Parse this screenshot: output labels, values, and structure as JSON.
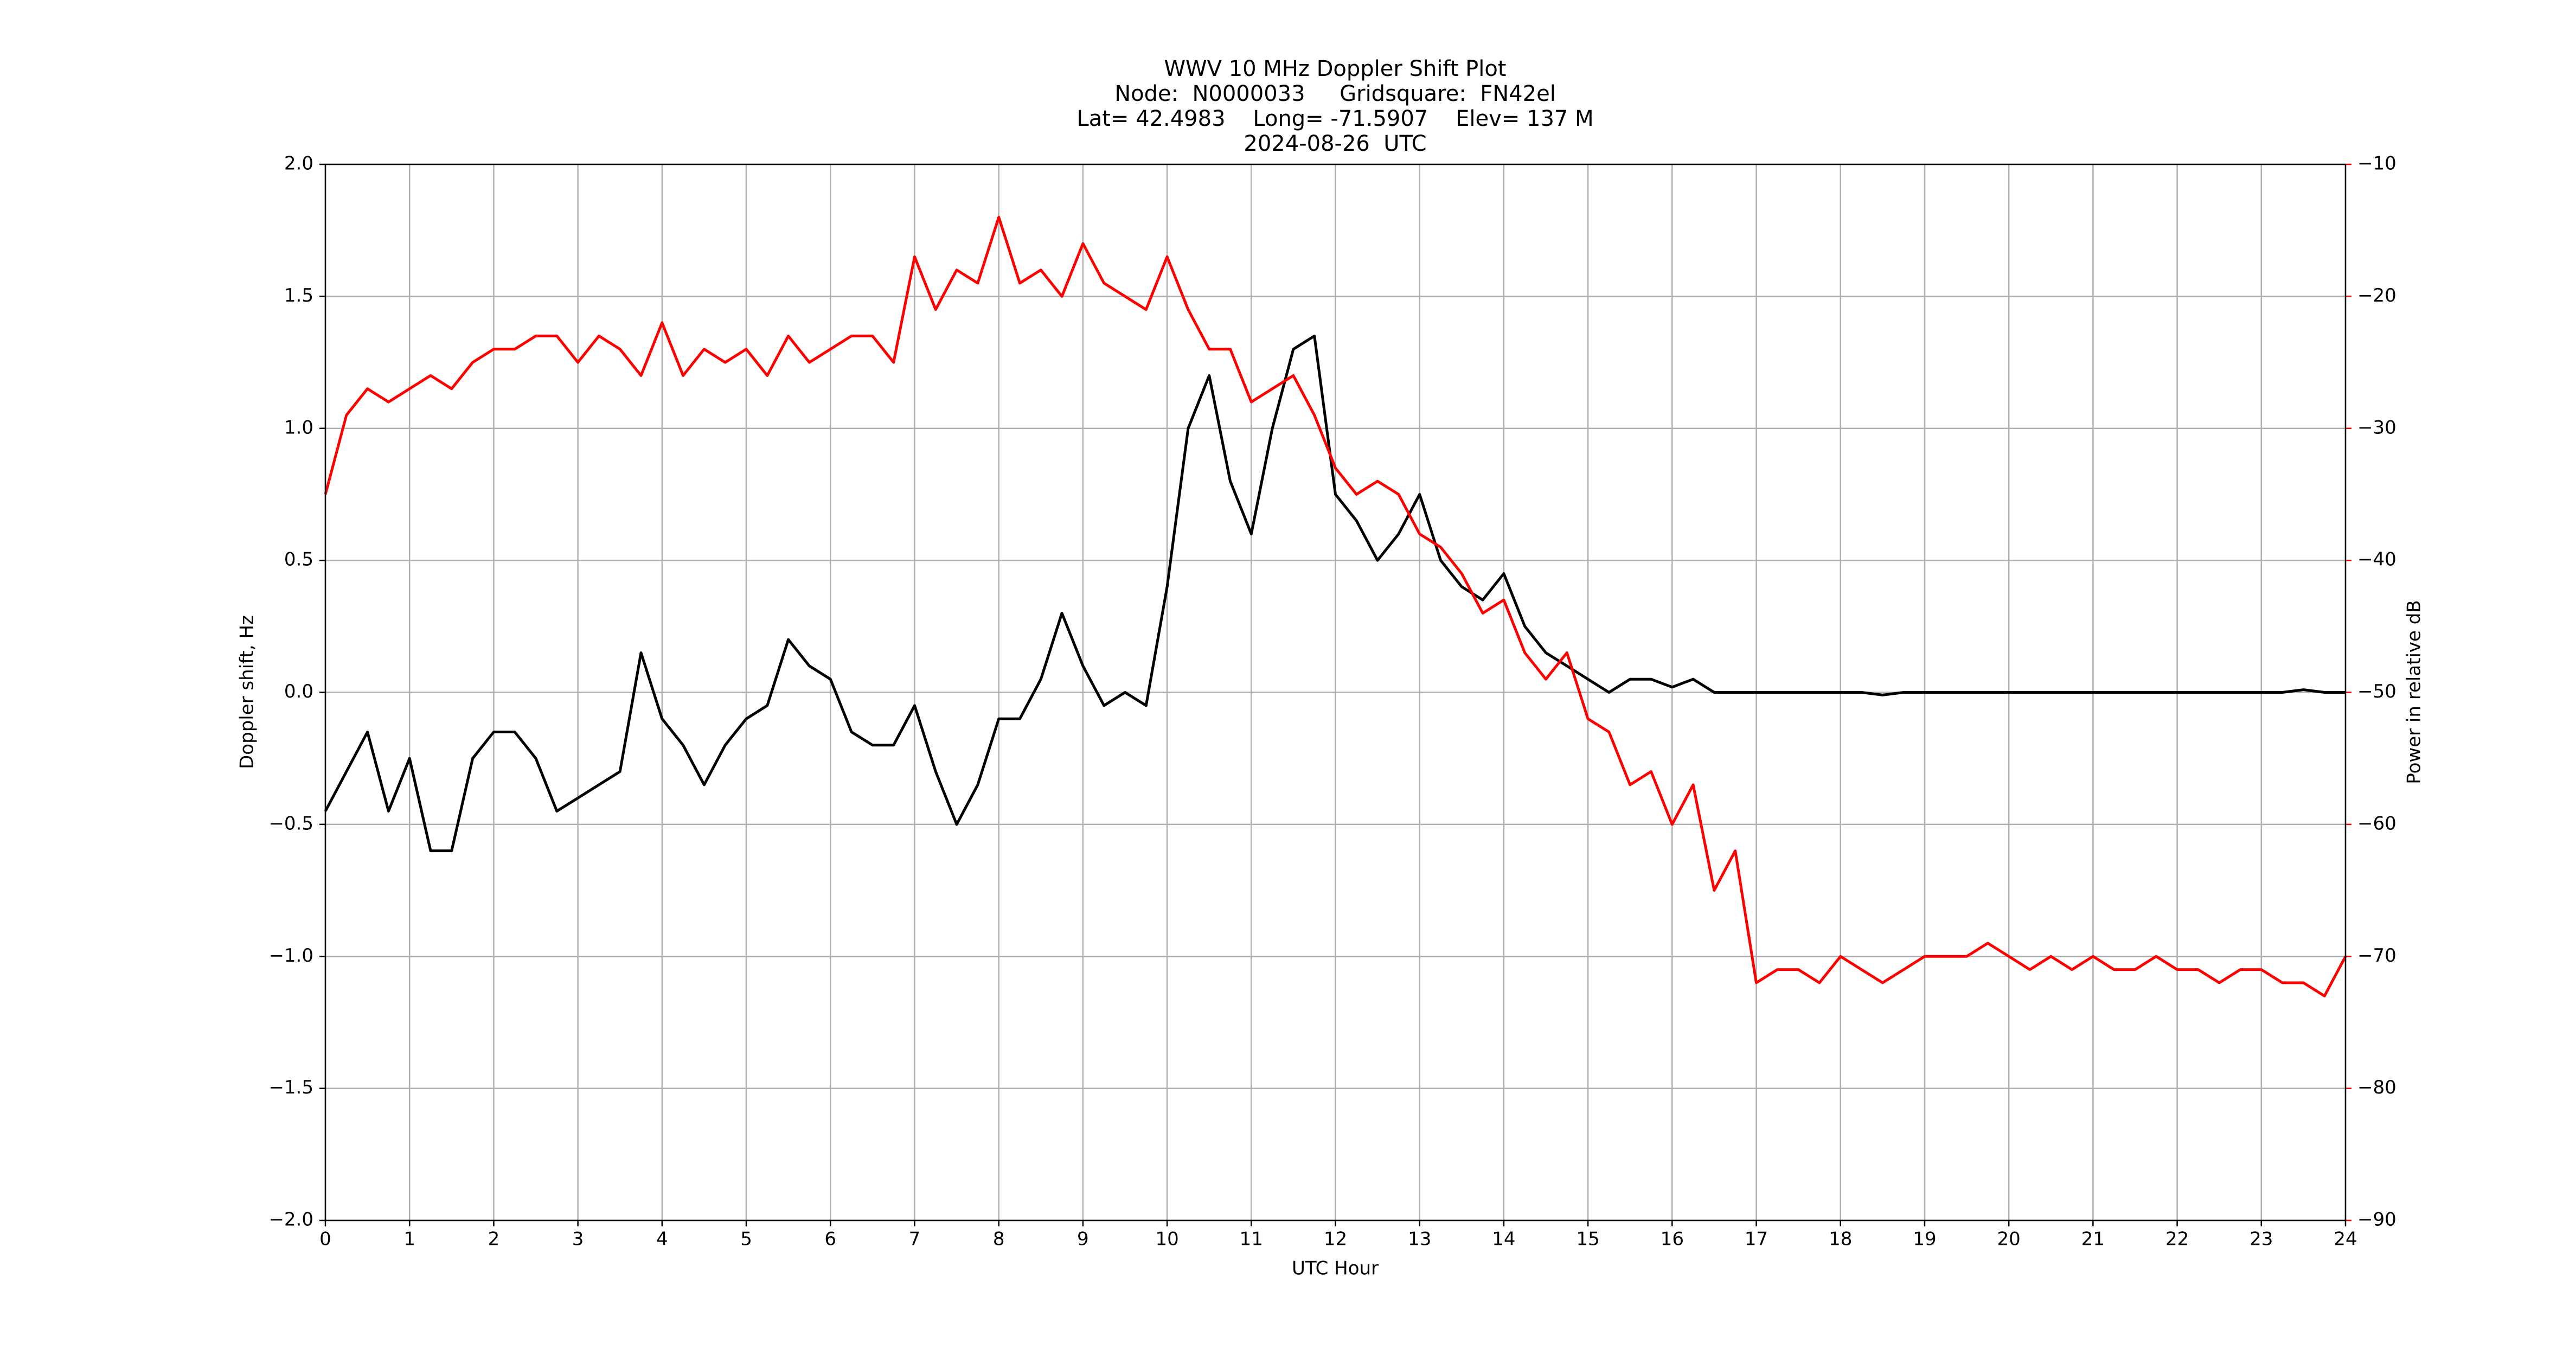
{
  "chart_data": {
    "type": "line",
    "title": "WWV 10 MHz Doppler Shift Plot",
    "subtitle": [
      "Node:  N0000033     Gridsquare:  FN42el",
      "Lat= 42.4983    Long= -71.5907    Elev= 137 M",
      "2024-08-26  UTC"
    ],
    "x_label": "UTC Hour",
    "y_label": "Doppler shift, Hz",
    "y2_label": "Power in relative dB",
    "y2_color": "#ff0000",
    "x": [
      0,
      0.25,
      0.5,
      0.75,
      1,
      1.25,
      1.5,
      1.75,
      2,
      2.25,
      2.5,
      2.75,
      3,
      3.25,
      3.5,
      3.75,
      4,
      4.25,
      4.5,
      4.75,
      5,
      5.25,
      5.5,
      5.75,
      6,
      6.25,
      6.5,
      6.75,
      7,
      7.25,
      7.5,
      7.75,
      8,
      8.25,
      8.5,
      8.75,
      9,
      9.25,
      9.5,
      9.75,
      10,
      10.25,
      10.5,
      10.75,
      11,
      11.25,
      11.5,
      11.75,
      12,
      12.25,
      12.5,
      12.75,
      13,
      13.25,
      13.5,
      13.75,
      14,
      14.25,
      14.5,
      14.75,
      15,
      15.25,
      15.5,
      15.75,
      16,
      16.25,
      16.5,
      16.75,
      17,
      17.25,
      17.5,
      17.75,
      18,
      18.25,
      18.5,
      18.75,
      19,
      19.25,
      19.5,
      19.75,
      20,
      20.25,
      20.5,
      20.75,
      21,
      21.25,
      21.5,
      21.75,
      22,
      22.25,
      22.5,
      22.75,
      23,
      23.25,
      23.5,
      23.75,
      24
    ],
    "series": [
      {
        "color": "#000000",
        "values": [
          -0.45,
          -0.3,
          -0.15,
          -0.45,
          -0.25,
          -0.6,
          -0.6,
          -0.25,
          -0.15,
          -0.15,
          -0.25,
          -0.45,
          -0.4,
          -0.35,
          -0.3,
          0.15,
          -0.1,
          -0.2,
          -0.35,
          -0.2,
          -0.1,
          -0.05,
          0.2,
          0.1,
          0.05,
          -0.15,
          -0.2,
          -0.2,
          -0.05,
          -0.3,
          -0.5,
          -0.35,
          -0.1,
          -0.1,
          0.05,
          0.3,
          0.1,
          -0.05,
          0,
          -0.05,
          0.4,
          1.0,
          1.2,
          0.8,
          0.6,
          1.0,
          1.3,
          1.35,
          0.75,
          0.65,
          0.5,
          0.6,
          0.75,
          0.5,
          0.4,
          0.35,
          0.45,
          0.25,
          0.15,
          0.1,
          0.05,
          0,
          0.05,
          0.05,
          0.02,
          0.05,
          0,
          0,
          0,
          0,
          0,
          0,
          0,
          0,
          -0.01,
          0,
          0,
          0,
          0,
          0,
          0,
          0,
          0,
          0,
          0,
          0,
          0,
          0,
          0,
          0,
          0,
          0,
          0,
          0,
          0.01,
          0,
          0
        ]
      },
      {
        "color": "#ff0000",
        "axis": "y2",
        "values": [
          -35,
          -29,
          -27,
          -28,
          -27,
          -26,
          -27,
          -25,
          -24,
          -24,
          -23,
          -23,
          -25,
          -23,
          -24,
          -26,
          -22,
          -26,
          -24,
          -25,
          -24,
          -26,
          -23,
          -25,
          -24,
          -23,
          -23,
          -25,
          -17,
          -21,
          -18,
          -19,
          -14,
          -19,
          -18,
          -20,
          -16,
          -19,
          -20,
          -21,
          -17,
          -21,
          -24,
          -24,
          -28,
          -27,
          -26,
          -29,
          -33,
          -35,
          -34,
          -35,
          -38,
          -39,
          -41,
          -44,
          -43,
          -47,
          -49,
          -47,
          -52,
          -53,
          -57,
          -56,
          -60,
          -57,
          -65,
          -62,
          -72,
          -71,
          -71,
          -72,
          -70,
          -71,
          -72,
          -71,
          -70,
          -70,
          -70,
          -69,
          -70,
          -71,
          -70,
          -71,
          -70,
          -71,
          -71,
          -70,
          -71,
          -71,
          -72,
          -71,
          -71,
          -72,
          -72,
          -73,
          -70
        ]
      }
    ],
    "xlim": [
      0,
      24
    ],
    "xticks": [
      0,
      1,
      2,
      3,
      4,
      5,
      6,
      7,
      8,
      9,
      10,
      11,
      12,
      13,
      14,
      15,
      16,
      17,
      18,
      19,
      20,
      21,
      22,
      23,
      24
    ],
    "ylim": [
      -2,
      2
    ],
    "yticks": [
      {
        "value": -2,
        "label": "−2.0"
      },
      {
        "value": -1.5,
        "label": "−1.5"
      },
      {
        "value": -1,
        "label": "−1.0"
      },
      {
        "value": -0.5,
        "label": "−0.5"
      },
      {
        "value": 0,
        "label": "0.0"
      },
      {
        "value": 0.5,
        "label": "0.5"
      },
      {
        "value": 1,
        "label": "1.0"
      },
      {
        "value": 1.5,
        "label": "1.5"
      },
      {
        "value": 2,
        "label": "2.0"
      }
    ],
    "y2lim": [
      -90,
      -10
    ],
    "y2ticks": [
      {
        "value": -90,
        "label": "−90"
      },
      {
        "value": -80,
        "label": "−80"
      },
      {
        "value": -70,
        "label": "−70"
      },
      {
        "value": -60,
        "label": "−60"
      },
      {
        "value": -50,
        "label": "−50"
      },
      {
        "value": -40,
        "label": "−40"
      },
      {
        "value": -30,
        "label": "−30"
      },
      {
        "value": -20,
        "label": "−20"
      },
      {
        "value": -10,
        "label": "−10"
      }
    ],
    "grid": true
  }
}
